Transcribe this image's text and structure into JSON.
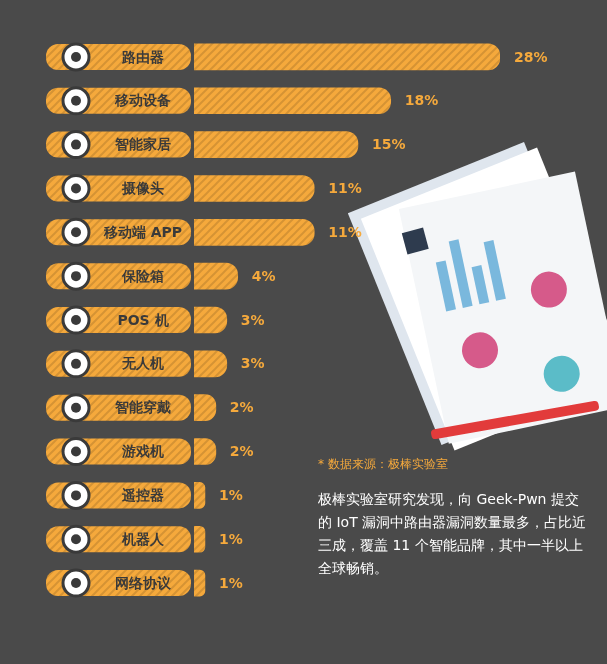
{
  "chart_data": {
    "type": "bar",
    "orientation": "horizontal",
    "categories": [
      "路由器",
      "移动设备",
      "智能家居",
      "摄像头",
      "移动端 APP",
      "保险箱",
      "POS 机",
      "无人机",
      "智能穿戴",
      "游戏机",
      "遥控器",
      "机器人",
      "网络协议"
    ],
    "values": [
      28,
      18,
      15,
      11,
      11,
      4,
      3,
      3,
      2,
      2,
      1,
      1,
      1
    ],
    "value_labels": [
      "28%",
      "18%",
      "15%",
      "11%",
      "11%",
      "4%",
      "3%",
      "3%",
      "2%",
      "2%",
      "1%",
      "1%",
      "1%"
    ],
    "data_labels": true,
    "color": "#f5a93c",
    "xlim": [
      0,
      28
    ],
    "grid": false,
    "tick_labels": false,
    "annotations": [
      "* 数据来源：极棒实验室",
      "极棒实验室研究发现，向 Geek-Pwn 提交的 IoT 漏洞中路由器漏洞数量最多，占比近三成，覆盖 11 个智能品牌，其中一半以上全球畅销。"
    ]
  }
}
